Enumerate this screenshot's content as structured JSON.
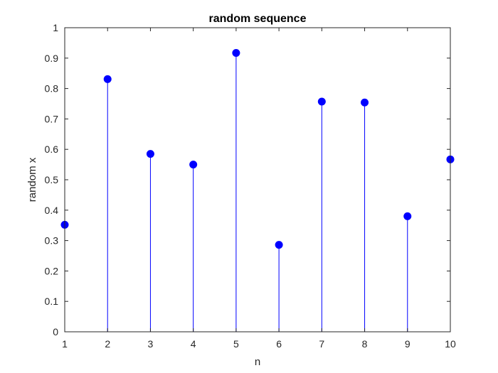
{
  "chart_data": {
    "type": "scatter",
    "style": "stem",
    "title": "random sequence",
    "xlabel": "n",
    "ylabel": "random x",
    "xlim": [
      1,
      10
    ],
    "ylim": [
      0,
      1
    ],
    "xticks": [
      "1",
      "2",
      "3",
      "4",
      "5",
      "6",
      "7",
      "8",
      "9",
      "10"
    ],
    "yticks": [
      "0",
      "0.1",
      "0.2",
      "0.3",
      "0.4",
      "0.5",
      "0.6",
      "0.7",
      "0.8",
      "0.9",
      "1"
    ],
    "grid": false,
    "series": [
      {
        "color": "#0000ff",
        "x": [
          1,
          2,
          3,
          4,
          5,
          6,
          7,
          8,
          9,
          10
        ],
        "values": [
          0.352,
          0.831,
          0.585,
          0.55,
          0.917,
          0.286,
          0.757,
          0.754,
          0.38,
          0.567
        ]
      }
    ]
  }
}
